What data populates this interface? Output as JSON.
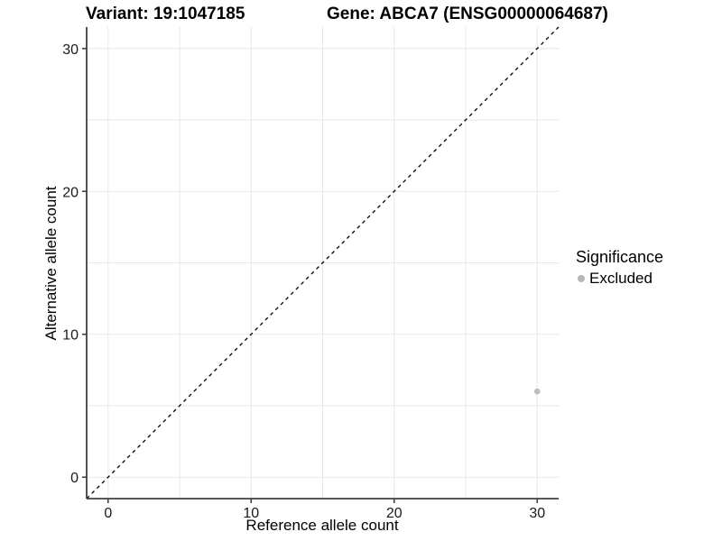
{
  "titles": {
    "variant": "Variant: 19:1047185",
    "gene": "Gene: ABCA7 (ENSG00000064687)"
  },
  "chart_data": {
    "type": "scatter",
    "title_left": "Variant: 19:1047185",
    "title_right": "Gene: ABCA7 (ENSG00000064687)",
    "xlabel": "Reference allele count",
    "ylabel": "Alternative allele count",
    "xlim": [
      -1.5,
      31.5
    ],
    "ylim": [
      -1.5,
      31.5
    ],
    "x_ticks": [
      0,
      10,
      20,
      30
    ],
    "y_ticks": [
      0,
      10,
      20,
      30
    ],
    "grid_values": [
      0,
      5,
      10,
      15,
      20,
      25,
      30
    ],
    "grid": true,
    "points": [
      {
        "x": 30,
        "y": 6,
        "series": "Excluded"
      }
    ],
    "identity_line": {
      "style": "dashed",
      "from": -1.5,
      "to": 31.5
    },
    "legend": {
      "position": "right",
      "title": "Significance",
      "entries": [
        {
          "label": "Excluded",
          "color": "#b6b6b6"
        }
      ]
    },
    "colors": {
      "point": "#bdbdbd",
      "grid": "#e7e7e7",
      "axis": "#404040",
      "tick_label": "#1a1a1a",
      "dashed_line": "#000000"
    }
  }
}
